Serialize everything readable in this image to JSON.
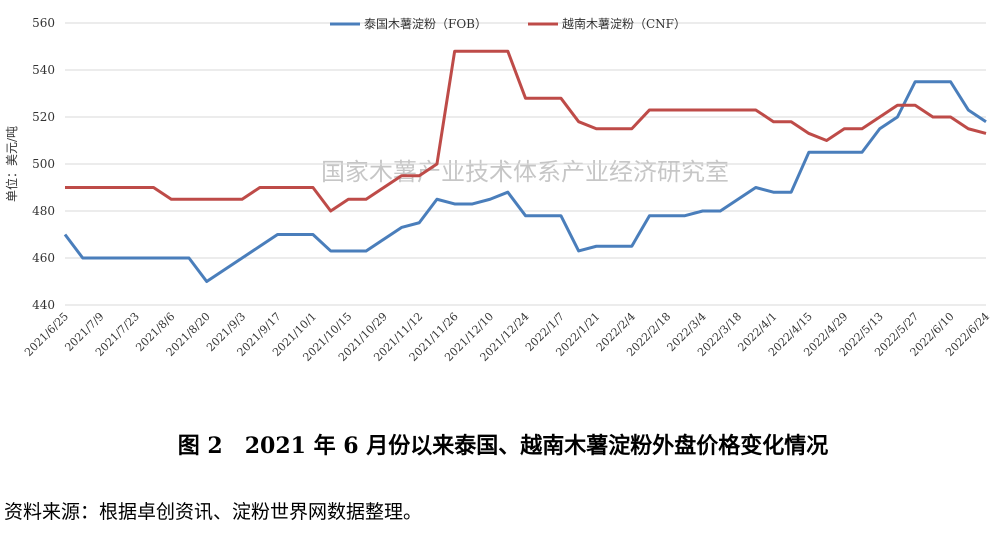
{
  "chart_data": {
    "type": "line",
    "y_label": "单位：美元/吨",
    "watermark": "国家木薯产业技术体系产业经济研究室",
    "categories": [
      "2021/6/25",
      null,
      "2021/7/9",
      null,
      "2021/7/23",
      null,
      "2021/8/6",
      null,
      "2021/8/20",
      null,
      "2021/9/3",
      null,
      "2021/9/17",
      null,
      "2021/10/1",
      null,
      "2021/10/15",
      null,
      "2021/10/29",
      null,
      "2021/11/12",
      null,
      "2021/11/26",
      null,
      "2021/12/10",
      null,
      "2021/12/24",
      null,
      "2022/1/7",
      null,
      "2022/1/21",
      null,
      "2022/2/4",
      null,
      "2022/2/18",
      null,
      "2022/3/4",
      null,
      "2022/3/18",
      null,
      "2022/4/1",
      null,
      "2022/4/15",
      null,
      "2022/4/29",
      null,
      "2022/5/13",
      null,
      "2022/5/27",
      null,
      "2022/6/10",
      null,
      "2022/6/24"
    ],
    "series": [
      {
        "name": "泰国木薯淀粉（FOB）",
        "color": "#4a7ebb",
        "values": [
          470,
          460,
          460,
          460,
          460,
          460,
          460,
          460,
          450,
          455,
          460,
          465,
          470,
          470,
          470,
          463,
          463,
          463,
          468,
          473,
          475,
          485,
          483,
          483,
          485,
          488,
          478,
          478,
          478,
          463,
          465,
          465,
          465,
          478,
          478,
          478,
          480,
          480,
          485,
          490,
          488,
          488,
          505,
          505,
          505,
          505,
          515,
          520,
          535,
          535,
          535,
          523,
          518
        ]
      },
      {
        "name": "越南木薯淀粉（CNF）",
        "color": "#be4b48",
        "values": [
          490,
          490,
          490,
          490,
          490,
          490,
          485,
          485,
          485,
          485,
          485,
          490,
          490,
          490,
          490,
          480,
          485,
          485,
          490,
          495,
          495,
          500,
          548,
          548,
          548,
          548,
          528,
          528,
          528,
          518,
          515,
          515,
          515,
          523,
          523,
          523,
          523,
          523,
          523,
          523,
          518,
          518,
          513,
          510,
          515,
          515,
          520,
          525,
          525,
          520,
          520,
          515,
          513
        ]
      }
    ],
    "ylim": [
      440,
      560
    ],
    "yticks": [
      440,
      460,
      480,
      500,
      520,
      540,
      560
    ],
    "grid": true
  },
  "caption": "图 2　2021 年 6 月份以来泰国、越南木薯淀粉外盘价格变化情况",
  "source": "资料来源：根据卓创资讯、淀粉世界网数据整理。"
}
